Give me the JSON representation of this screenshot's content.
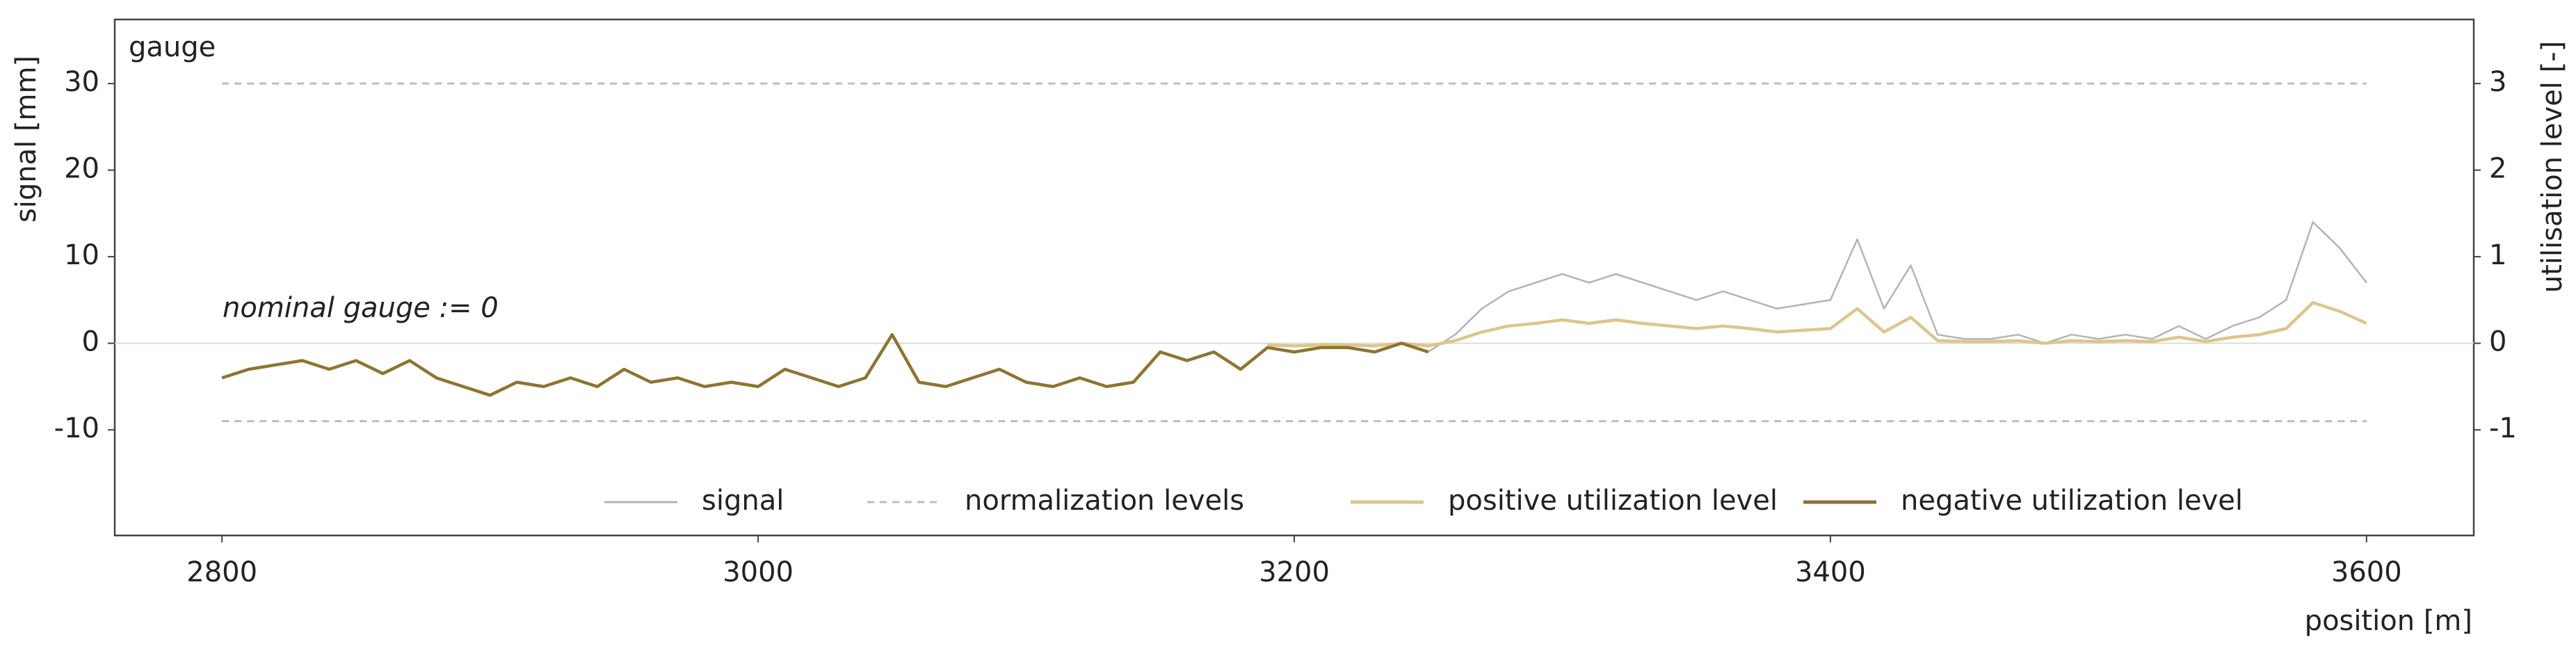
{
  "chart_data": {
    "type": "line",
    "annotations": [
      "gauge",
      "nominal gauge := 0"
    ],
    "xlabel": "position [m]",
    "ylabel": "signal [mm]",
    "y2label": "utilisation level [-]",
    "x": [
      2800,
      2810,
      2820,
      2830,
      2840,
      2850,
      2860,
      2870,
      2880,
      2890,
      2900,
      2910,
      2920,
      2930,
      2940,
      2950,
      2960,
      2970,
      2980,
      2990,
      3000,
      3010,
      3020,
      3030,
      3040,
      3050,
      3060,
      3070,
      3080,
      3090,
      3100,
      3110,
      3120,
      3130,
      3140,
      3150,
      3160,
      3170,
      3180,
      3190,
      3200,
      3210,
      3220,
      3230,
      3240,
      3250,
      3260,
      3270,
      3280,
      3290,
      3300,
      3310,
      3320,
      3330,
      3340,
      3350,
      3360,
      3370,
      3380,
      3390,
      3400,
      3410,
      3420,
      3430,
      3440,
      3450,
      3460,
      3470,
      3480,
      3490,
      3500,
      3510,
      3520,
      3530,
      3540,
      3550,
      3560,
      3570,
      3580,
      3590,
      3600
    ],
    "series": [
      {
        "name": "signal",
        "color": "#b4b4b4",
        "width": 2.5,
        "values": [
          -4,
          -3,
          -2.5,
          -2,
          -3,
          -2,
          -3.5,
          -2,
          -4,
          -5,
          -6,
          -4.5,
          -5,
          -4,
          -5,
          -3,
          -4.5,
          -4,
          -5,
          -4.5,
          -5,
          -3,
          -4,
          -5,
          -4,
          1,
          -4.5,
          -5,
          -4,
          -3,
          -4.5,
          -5,
          -4,
          -5,
          -4.5,
          -1,
          -2,
          -1,
          -3,
          -0.5,
          -1,
          -0.5,
          -0.5,
          -1,
          0,
          -1,
          1,
          4,
          6,
          7,
          8,
          7,
          8,
          7,
          6,
          5,
          6,
          5,
          4,
          4.5,
          5,
          12,
          4,
          9,
          1,
          0.5,
          0.5,
          1,
          0,
          1,
          0.5,
          1,
          0.5,
          2,
          0.5,
          2,
          3,
          5,
          14,
          11,
          7
        ]
      },
      {
        "name": "positive utilization level",
        "color": "#dcc68e",
        "width": 4.5,
        "axis": "y2",
        "values": [
          null,
          null,
          null,
          null,
          null,
          null,
          null,
          null,
          null,
          null,
          null,
          null,
          null,
          null,
          null,
          null,
          null,
          null,
          null,
          null,
          null,
          null,
          null,
          null,
          null,
          null,
          null,
          null,
          null,
          null,
          null,
          null,
          null,
          null,
          null,
          null,
          null,
          null,
          null,
          -0.02,
          -0.03,
          -0.02,
          -0.02,
          -0.03,
          0,
          -0.03,
          0.03,
          0.13,
          0.2,
          0.23,
          0.27,
          0.23,
          0.27,
          0.23,
          0.2,
          0.17,
          0.2,
          0.17,
          0.13,
          0.15,
          0.17,
          0.4,
          0.13,
          0.3,
          0.03,
          0.02,
          0.02,
          0.03,
          0,
          0.03,
          0.02,
          0.03,
          0.02,
          0.07,
          0.02,
          0.07,
          0.1,
          0.17,
          0.47,
          0.37,
          0.23
        ]
      },
      {
        "name": "negative utilization level",
        "color": "#8c7532",
        "width": 4.5,
        "axis": "y2",
        "values": [
          -0.4,
          -0.3,
          -0.25,
          -0.2,
          -0.3,
          -0.2,
          -0.35,
          -0.2,
          -0.4,
          -0.5,
          -0.6,
          -0.45,
          -0.5,
          -0.4,
          -0.5,
          -0.3,
          -0.45,
          -0.4,
          -0.5,
          -0.45,
          -0.5,
          -0.3,
          -0.4,
          -0.5,
          -0.4,
          0.1,
          -0.45,
          -0.5,
          -0.4,
          -0.3,
          -0.45,
          -0.5,
          -0.4,
          -0.5,
          -0.45,
          -0.1,
          -0.2,
          -0.1,
          -0.3,
          -0.05,
          -0.1,
          -0.05,
          -0.05,
          -0.1,
          0,
          -0.1,
          null,
          null,
          null,
          null,
          null,
          null,
          null,
          null,
          null,
          null,
          null,
          null,
          null,
          null,
          null,
          null,
          null,
          null,
          null,
          null,
          null,
          null,
          null,
          null,
          null,
          null,
          null,
          null,
          null,
          null,
          null,
          null,
          null,
          null,
          null
        ]
      }
    ],
    "reference_lines": {
      "name": "normalization levels",
      "color": "#bdbdbd",
      "values": [
        30,
        -9
      ]
    },
    "xlim": [
      2760,
      3640
    ],
    "xticks": [
      2800,
      3000,
      3200,
      3400,
      3600
    ],
    "ylim": [
      -22.2,
      37.4
    ],
    "yticks": [
      -10,
      0,
      10,
      20,
      30
    ],
    "y2lim": [
      -2.22,
      3.74
    ],
    "y2ticks": [
      -1,
      0,
      1,
      2,
      3
    ],
    "zero_line": true
  }
}
